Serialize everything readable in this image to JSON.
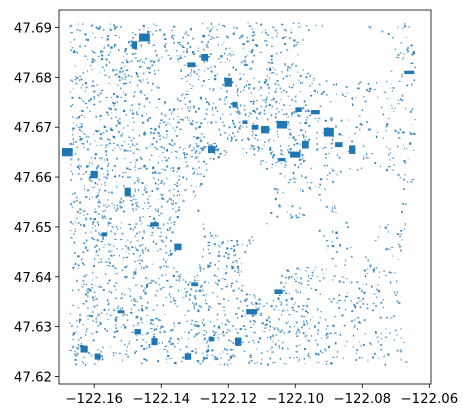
{
  "chart_data": {
    "type": "map",
    "title": "",
    "xlabel": "",
    "ylabel": "",
    "xlim": [
      -122.1705,
      -122.0595
    ],
    "ylim": [
      47.6185,
      47.6935
    ],
    "x_ticks": [
      -122.16,
      -122.14,
      -122.12,
      -122.1,
      -122.08,
      -122.06
    ],
    "x_tick_labels": [
      "−122.16",
      "−122.14",
      "−122.12",
      "−122.10",
      "−122.08",
      "−122.06"
    ],
    "y_ticks": [
      47.62,
      47.63,
      47.64,
      47.65,
      47.66,
      47.67,
      47.68,
      47.69
    ],
    "y_tick_labels": [
      "47.62",
      "47.63",
      "47.64",
      "47.65",
      "47.66",
      "47.67",
      "47.68",
      "47.69"
    ],
    "grid": false,
    "legend": "none",
    "fill_color": "#1f77b4",
    "data_extent": {
      "lon": [
        -122.1675,
        -122.0645
      ],
      "lat": [
        47.6225,
        47.691
      ]
    },
    "features_description": "building footprints",
    "large_buildings": [
      {
        "lon": -122.148,
        "lat": 47.6865
      },
      {
        "lon": -122.145,
        "lat": 47.688
      },
      {
        "lon": -122.131,
        "lat": 47.6825
      },
      {
        "lon": -122.127,
        "lat": 47.684
      },
      {
        "lon": -122.12,
        "lat": 47.679
      },
      {
        "lon": -122.118,
        "lat": 47.6745
      },
      {
        "lon": -122.115,
        "lat": 47.671
      },
      {
        "lon": -122.112,
        "lat": 47.67
      },
      {
        "lon": -122.109,
        "lat": 47.6695
      },
      {
        "lon": -122.104,
        "lat": 47.6705
      },
      {
        "lon": -122.099,
        "lat": 47.6735
      },
      {
        "lon": -122.094,
        "lat": 47.673
      },
      {
        "lon": -122.09,
        "lat": 47.669
      },
      {
        "lon": -122.097,
        "lat": 47.6665
      },
      {
        "lon": -122.1,
        "lat": 47.6645
      },
      {
        "lon": -122.104,
        "lat": 47.6635
      },
      {
        "lon": -122.087,
        "lat": 47.6665
      },
      {
        "lon": -122.083,
        "lat": 47.6655
      },
      {
        "lon": -122.125,
        "lat": 47.6655
      },
      {
        "lon": -122.16,
        "lat": 47.6605
      },
      {
        "lon": -122.15,
        "lat": 47.657
      },
      {
        "lon": -122.157,
        "lat": 47.6485
      },
      {
        "lon": -122.142,
        "lat": 47.6505
      },
      {
        "lon": -122.135,
        "lat": 47.646
      },
      {
        "lon": -122.152,
        "lat": 47.633
      },
      {
        "lon": -122.147,
        "lat": 47.629
      },
      {
        "lon": -122.142,
        "lat": 47.627
      },
      {
        "lon": -122.163,
        "lat": 47.6255
      },
      {
        "lon": -122.159,
        "lat": 47.624
      },
      {
        "lon": -122.132,
        "lat": 47.624
      },
      {
        "lon": -122.125,
        "lat": 47.6275
      },
      {
        "lon": -122.117,
        "lat": 47.627
      },
      {
        "lon": -122.13,
        "lat": 47.6385
      },
      {
        "lon": -122.113,
        "lat": 47.633
      },
      {
        "lon": -122.105,
        "lat": 47.637
      },
      {
        "lon": -122.168,
        "lat": 47.665
      },
      {
        "lon": -122.066,
        "lat": 47.681
      }
    ]
  }
}
